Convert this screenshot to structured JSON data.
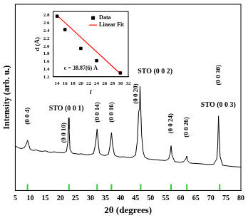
{
  "chart_data": [
    {
      "type": "line",
      "x_label": "2θ (degrees)",
      "y_label": "Intensity (arb. u.)",
      "xlim": [
        5,
        80
      ],
      "xticks": [
        5,
        10,
        15,
        20,
        25,
        30,
        35,
        40,
        45,
        50,
        55,
        60,
        65,
        70,
        75,
        80
      ],
      "ylim": [
        0,
        100
      ],
      "tick_labels": "x",
      "grid": false,
      "color": "#000000",
      "x": [
        5,
        6,
        7,
        8,
        8.7,
        9.1,
        9.5,
        10,
        11,
        12,
        13,
        14,
        15,
        16,
        17,
        18,
        19,
        20,
        21,
        22,
        22.5,
        22.75,
        22.9,
        23.2,
        24,
        25,
        26,
        27,
        28,
        29,
        30,
        31,
        31.7,
        32.2,
        32.7,
        33,
        34,
        35,
        36,
        36.6,
        37,
        37.4,
        38,
        39,
        40,
        41,
        42,
        43,
        44,
        45,
        45.6,
        46.0,
        46.3,
        46.47,
        46.7,
        47.0,
        47.5,
        48,
        49,
        50,
        51,
        52,
        53,
        54,
        55,
        56,
        56.5,
        56.8,
        57.1,
        58,
        59,
        60,
        61,
        61.7,
        62,
        62.3,
        63,
        64,
        65,
        66,
        67,
        68,
        69,
        70,
        71,
        72,
        72.3,
        72.56,
        72.8,
        73.1,
        74,
        75,
        76,
        77,
        78,
        79,
        80
      ],
      "values": [
        24,
        23,
        22.5,
        23,
        25,
        27,
        24.5,
        22,
        21.5,
        21.8,
        21.2,
        21,
        21.3,
        20.7,
        20.5,
        20.8,
        20.3,
        20.4,
        20.2,
        21,
        26,
        39,
        33,
        22,
        20,
        19.8,
        19.5,
        19.7,
        19.3,
        19.2,
        19.4,
        19.8,
        25,
        33,
        24,
        20,
        19,
        18.8,
        19.5,
        25,
        31,
        24,
        19,
        18.2,
        18,
        18.1,
        17.8,
        17.6,
        17.9,
        19,
        27,
        42,
        44,
        56,
        45,
        30,
        21,
        18,
        17,
        16.8,
        16.6,
        16.5,
        16.3,
        16.2,
        16.1,
        17,
        20,
        24,
        19,
        15.5,
        15.3,
        15.2,
        15.5,
        17,
        18.5,
        16,
        14.8,
        14.6,
        14.5,
        14.4,
        14.3,
        14.1,
        14,
        14,
        14.2,
        17,
        24,
        40,
        30,
        18,
        13.5,
        13.3,
        13.1,
        12.9,
        12.8,
        12.7,
        12.5
      ],
      "peak_labels": [
        {
          "text": "(0 0 4)",
          "x": 9.1,
          "y": 40
        },
        {
          "text": "(0 0 10)",
          "x": 21.2,
          "y": 31
        },
        {
          "text": "(0 0 14)",
          "x": 32.2,
          "y": 42
        },
        {
          "text": "(0 0 16)",
          "x": 37,
          "y": 42
        },
        {
          "text": "(0 0 20)",
          "x": 45.2,
          "y": 52
        },
        {
          "text": "(0 0 24)",
          "x": 56.8,
          "y": 36
        },
        {
          "text": "(0 0 26)",
          "x": 62,
          "y": 34
        },
        {
          "text": "(0 0 30)",
          "x": 72.5,
          "y": 62
        }
      ],
      "substrate_labels": [
        {
          "text": "STO (0 0 1)",
          "x": 22,
          "y": 44
        },
        {
          "text": "STO (0 0 2)",
          "x": 51.5,
          "y": 64
        },
        {
          "text": "STO (0 0 3)",
          "x": 72.5,
          "y": 46
        }
      ],
      "reference_peaks": {
        "color": "#33cc33",
        "x": [
          9.09,
          22.86,
          32.21,
          36.98,
          46.7,
          56.79,
          62.03,
          72.96
        ]
      }
    },
    {
      "type": "scatter",
      "x_label": "l",
      "y_label": "d (Å)",
      "xlim": [
        13,
        32
      ],
      "xticks": [
        14,
        16,
        18,
        20,
        22,
        24,
        26,
        28,
        30,
        32
      ],
      "ylim": [
        1.2,
        2.9
      ],
      "yticks": [
        1.2,
        1.4,
        1.6,
        1.8,
        {
          "value": 2,
          "label": "2.0"
        },
        2.2,
        2.4,
        2.6,
        2.8
      ],
      "grid": false,
      "legend": "upper right",
      "series": [
        {
          "name": "Data",
          "type": "scatter",
          "marker": "square",
          "color": "#000000",
          "x": [
            14,
            16,
            20,
            24,
            30
          ],
          "values": [
            2.78,
            2.43,
            1.94,
            1.62,
            1.3
          ]
        },
        {
          "name": "Linear Fit",
          "type": "line",
          "color": "#ff0000",
          "x": [
            14,
            30
          ],
          "values": [
            2.8,
            1.28
          ]
        }
      ],
      "annotations": [
        {
          "text": "c = 38.87(6) Å",
          "x": 20,
          "y": 1.42
        }
      ]
    }
  ]
}
